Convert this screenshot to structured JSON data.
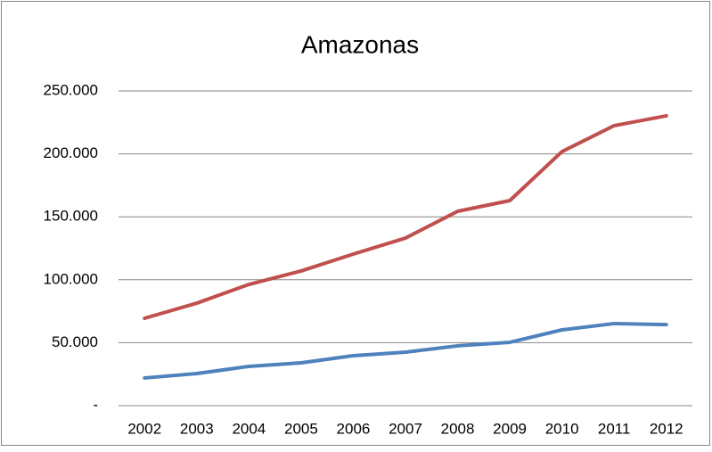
{
  "chart_data": {
    "type": "line",
    "title": "Amazonas",
    "categories": [
      "2002",
      "2003",
      "2004",
      "2005",
      "2006",
      "2007",
      "2008",
      "2009",
      "2010",
      "2011",
      "2012"
    ],
    "series": [
      {
        "color": "#c0504d",
        "values": [
          69400,
          81400,
          96300,
          107000,
          120400,
          133100,
          154400,
          162900,
          201800,
          222400,
          230200
        ]
      },
      {
        "color": "#4f81bd",
        "values": [
          22000,
          25500,
          31200,
          34000,
          39700,
          42500,
          47500,
          50300,
          60200,
          65200,
          64400
        ]
      }
    ],
    "ylim": [
      0,
      250000
    ],
    "yticks": [
      {
        "value": 0,
        "label": "-"
      },
      {
        "value": 50000,
        "label": "50.000"
      },
      {
        "value": 100000,
        "label": "100.000"
      },
      {
        "value": 150000,
        "label": "150.000"
      },
      {
        "value": 200000,
        "label": "200.000"
      },
      {
        "value": 250000,
        "label": "250.000"
      }
    ],
    "grid": true
  }
}
